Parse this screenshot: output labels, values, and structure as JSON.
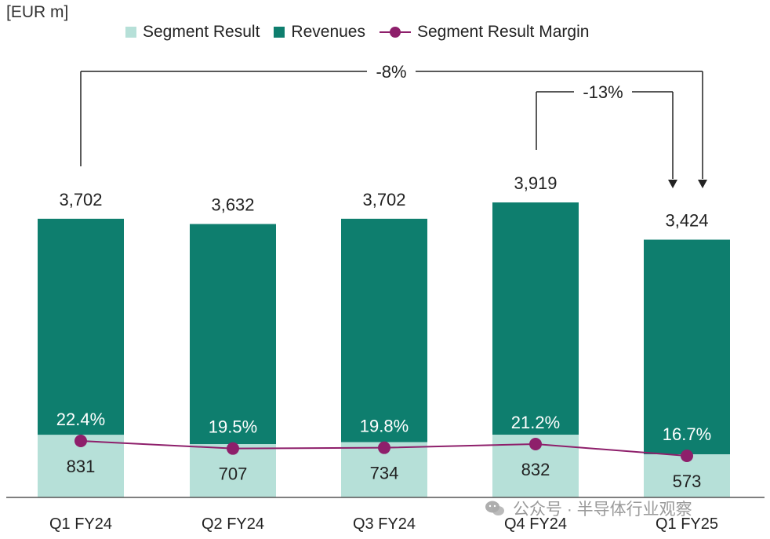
{
  "unit_label": "[EUR m]",
  "colors": {
    "revenues": "#0E7E6E",
    "segment_result": "#B6E0D8",
    "margin": "#8E1F6B",
    "annotation": "#222222",
    "axis": "#555555"
  },
  "legend": [
    {
      "label": "Segment Result",
      "kind": "swatch",
      "color": "#B6E0D8"
    },
    {
      "label": "Revenues",
      "kind": "swatch",
      "color": "#0E7E6E"
    },
    {
      "label": "Segment Result Margin",
      "kind": "line",
      "color": "#8E1F6B"
    }
  ],
  "watermark": "公众号 · 半导体行业观察",
  "chart_data": {
    "type": "bar",
    "categories": [
      "Q1 FY24",
      "Q2 FY24",
      "Q3 FY24",
      "Q4 FY24",
      "Q1 FY25"
    ],
    "ylim": [
      0,
      3919
    ],
    "series": [
      {
        "name": "Revenues",
        "values": [
          3702,
          3632,
          3702,
          3919,
          3424
        ],
        "labels": [
          "3,702",
          "3,632",
          "3,702",
          "3,919",
          "3,424"
        ]
      },
      {
        "name": "Segment Result",
        "values": [
          831,
          707,
          734,
          832,
          573
        ],
        "labels": [
          "831",
          "707",
          "734",
          "832",
          "573"
        ]
      },
      {
        "name": "Segment Result Margin",
        "type": "line",
        "values": [
          22.4,
          19.5,
          19.8,
          21.2,
          16.7
        ],
        "labels": [
          "22.4%",
          "19.5%",
          "19.8%",
          "21.2%",
          "16.7%"
        ]
      }
    ],
    "annotations": [
      {
        "text": "-8%",
        "from": "Q1 FY24",
        "to": "Q1 FY25"
      },
      {
        "text": "-13%",
        "from": "Q4 FY24",
        "to": "Q1 FY25"
      }
    ]
  }
}
